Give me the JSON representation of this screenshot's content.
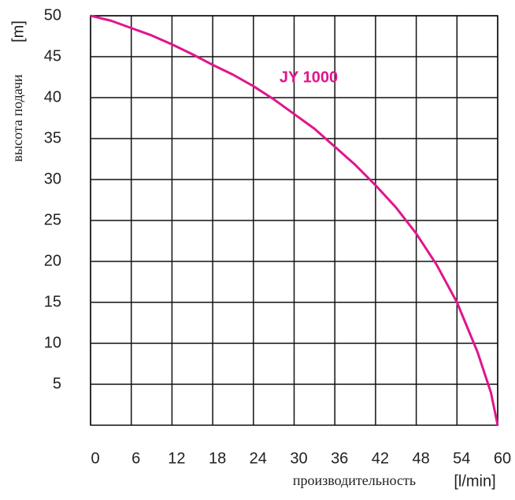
{
  "chart_data": {
    "type": "line",
    "y_label": "высота подачи",
    "y_unit": "[m]",
    "x_label": "производительность",
    "x_unit": "[l/min]",
    "x": [
      0,
      3,
      6,
      9,
      12,
      15,
      18,
      21,
      24,
      27,
      30,
      33,
      36,
      39,
      42,
      45,
      48,
      51,
      54,
      57,
      59,
      60
    ],
    "series": [
      {
        "name": "JY 1000",
        "color": "#e0158c",
        "values": [
          50,
          49.4,
          48.5,
          47.6,
          46.5,
          45.3,
          44,
          42.8,
          41.4,
          39.8,
          38,
          36.2,
          34,
          31.8,
          29.3,
          26.6,
          23.4,
          19.6,
          15,
          9,
          4,
          0
        ]
      }
    ],
    "xlim": [
      0,
      60
    ],
    "xticks": [
      0,
      6,
      12,
      18,
      24,
      30,
      36,
      42,
      48,
      54,
      60
    ],
    "ylim": [
      0,
      50
    ],
    "yticks": [
      5,
      10,
      15,
      20,
      25,
      30,
      35,
      40,
      45,
      50
    ],
    "grid": true
  }
}
